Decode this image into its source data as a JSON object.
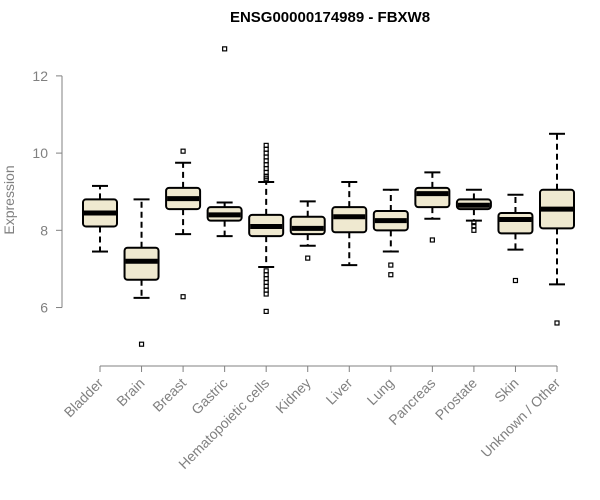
{
  "chart_data": {
    "type": "boxplot",
    "title": "ENSG00000174989 - FBXW8",
    "xlabel": "",
    "ylabel": "Expression",
    "ylim": [
      4.9,
      12.8
    ],
    "yticks": [
      6,
      8,
      10,
      12
    ],
    "categories": [
      "Bladder",
      "Brain",
      "Breast",
      "Gastric",
      "Hematopoietic cells",
      "Kidney",
      "Liver",
      "Lung",
      "Pancreas",
      "Prostate",
      "Skin",
      "Unknown / Other"
    ],
    "boxes": [
      {
        "category": "Bladder",
        "whisker_low": 7.45,
        "q1": 8.1,
        "median": 8.45,
        "q3": 8.8,
        "whisker_high": 9.15,
        "outliers": []
      },
      {
        "category": "Brain",
        "whisker_low": 6.25,
        "q1": 6.72,
        "median": 7.2,
        "q3": 7.55,
        "whisker_high": 8.8,
        "outliers": [
          5.05
        ]
      },
      {
        "category": "Breast",
        "whisker_low": 7.9,
        "q1": 8.55,
        "median": 8.82,
        "q3": 9.1,
        "whisker_high": 9.75,
        "outliers": [
          10.05,
          6.28
        ]
      },
      {
        "category": "Gastric",
        "whisker_low": 7.85,
        "q1": 8.25,
        "median": 8.4,
        "q3": 8.6,
        "whisker_high": 8.72,
        "outliers": [
          12.7
        ]
      },
      {
        "category": "Hematopoietic cells",
        "whisker_low": 7.05,
        "q1": 7.85,
        "median": 8.1,
        "q3": 8.4,
        "whisker_high": 9.25,
        "outliers": [
          10.2,
          10.1,
          10.0,
          9.9,
          9.8,
          9.7,
          9.6,
          9.5,
          9.4,
          9.35,
          9.3,
          6.95,
          6.85,
          6.75,
          6.65,
          6.55,
          6.45,
          6.35,
          5.9
        ]
      },
      {
        "category": "Kidney",
        "whisker_low": 7.6,
        "q1": 7.9,
        "median": 8.05,
        "q3": 8.35,
        "whisker_high": 8.75,
        "outliers": [
          7.28
        ]
      },
      {
        "category": "Liver",
        "whisker_low": 7.1,
        "q1": 7.95,
        "median": 8.35,
        "q3": 8.6,
        "whisker_high": 9.25,
        "outliers": []
      },
      {
        "category": "Lung",
        "whisker_low": 7.45,
        "q1": 8.0,
        "median": 8.25,
        "q3": 8.5,
        "whisker_high": 9.05,
        "outliers": [
          7.1,
          6.85
        ]
      },
      {
        "category": "Pancreas",
        "whisker_low": 8.3,
        "q1": 8.6,
        "median": 8.95,
        "q3": 9.1,
        "whisker_high": 9.5,
        "outliers": [
          7.75
        ]
      },
      {
        "category": "Prostate",
        "whisker_low": 8.25,
        "q1": 8.55,
        "median": 8.65,
        "q3": 8.8,
        "whisker_high": 9.05,
        "outliers": [
          8.2,
          8.12,
          8.0
        ]
      },
      {
        "category": "Skin",
        "whisker_low": 7.5,
        "q1": 7.92,
        "median": 8.28,
        "q3": 8.45,
        "whisker_high": 8.92,
        "outliers": [
          6.7
        ]
      },
      {
        "category": "Unknown / Other",
        "whisker_low": 6.6,
        "q1": 8.05,
        "median": 8.55,
        "q3": 9.05,
        "whisker_high": 10.5,
        "outliers": [
          5.6
        ]
      }
    ],
    "colors": {
      "box_fill": "#efe9d0",
      "box_stroke": "#000000",
      "axis": "#808080",
      "label": "#808080"
    }
  }
}
